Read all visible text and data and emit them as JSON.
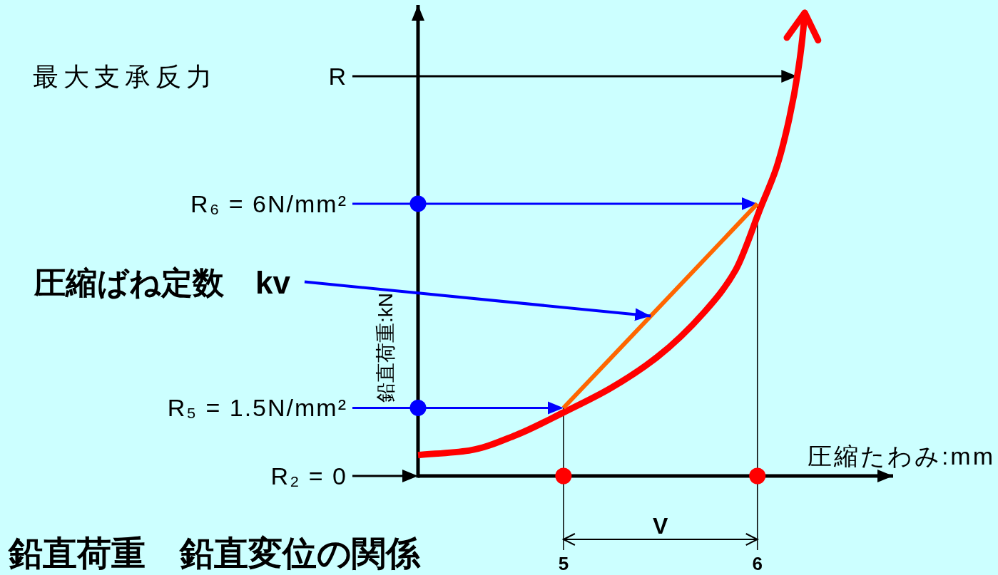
{
  "chart_data": {
    "type": "line",
    "title": "鉛直荷重　鉛直変位の関係",
    "xlabel": "圧縮たわみ:mm",
    "ylabel": "鉛直荷重:kN",
    "xlim": [
      4.25,
      6.7
    ],
    "xticks": [
      5,
      6
    ],
    "ylim": [
      0,
      10.38
    ],
    "tick_labels": "x",
    "series": [
      {
        "color": "#ff0000",
        "x": [
          4.25,
          4.513,
          4.755,
          5.0,
          5.241,
          5.483,
          5.726,
          5.888,
          6.019,
          6.101,
          6.164,
          6.211,
          6.237,
          6.244
        ],
        "values": [
          0.46,
          0.56,
          0.9,
          1.4,
          1.93,
          2.62,
          3.61,
          4.54,
          5.94,
          6.83,
          7.87,
          8.96,
          9.86,
          10.21
        ]
      },
      {
        "color": "#ff6600",
        "x": [
          5,
          6
        ],
        "values": [
          1.5,
          6
        ]
      },
      {
        "type": "scatter",
        "color": "#0000ff",
        "x": [
          4.25,
          4.25
        ],
        "values": [
          6,
          1.5
        ]
      },
      {
        "type": "scatter",
        "color": "#ff0000",
        "x": [
          5,
          6
        ],
        "values": [
          0,
          0
        ]
      }
    ],
    "ref_lines": [
      {
        "axis": "y",
        "value": 8.81,
        "label": "R",
        "color": "#000000"
      },
      {
        "axis": "y",
        "value": 6,
        "label": "R₆ = 6N/mm²",
        "color": "#0000ff"
      },
      {
        "axis": "y",
        "value": 1.5,
        "label": "R₅ = 1.5N/mm²",
        "color": "#0000ff"
      },
      {
        "axis": "y",
        "value": 0,
        "label": "R₂ = 0",
        "color": "#000000"
      },
      {
        "axis": "x",
        "value": 5,
        "color": "#000000"
      },
      {
        "axis": "x",
        "value": 6,
        "color": "#000000"
      }
    ],
    "annotations": [
      "最大支承反力",
      "V",
      {
        "text": "圧縮ばね定数　kv",
        "x": 5.45,
        "y": 3.525
      }
    ]
  }
}
